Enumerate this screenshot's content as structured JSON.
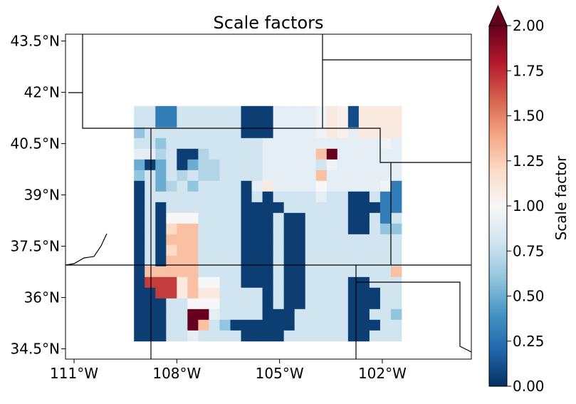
{
  "title": "Scale factors",
  "lat_ticks": [
    {
      "value": 43.5,
      "label": "43.5°N"
    },
    {
      "value": 42.0,
      "label": "42°N"
    },
    {
      "value": 40.5,
      "label": "40.5°N"
    },
    {
      "value": 39.0,
      "label": "39°N"
    },
    {
      "value": 37.5,
      "label": "37.5°N"
    },
    {
      "value": 36.0,
      "label": "36°N"
    },
    {
      "value": 34.5,
      "label": "34.5°N"
    }
  ],
  "lon_ticks": [
    {
      "value": -111,
      "label": "111°W"
    },
    {
      "value": -108,
      "label": "108°W"
    },
    {
      "value": -105,
      "label": "105°W"
    },
    {
      "value": -102,
      "label": "102°W"
    }
  ],
  "extent": {
    "lon_min": -111.25,
    "lon_max": -99.4,
    "lat_min": 34.2,
    "lat_max": 43.7
  },
  "colorbar": {
    "label": "Scale factor",
    "min": 0.0,
    "max": 2.0,
    "extend": "max",
    "colormap": "RdBu_r",
    "ticks": [
      "0.00",
      "0.25",
      "0.50",
      "0.75",
      "1.00",
      "1.25",
      "1.50",
      "1.75",
      "2.00"
    ]
  },
  "chart_data": {
    "type": "heatmap",
    "title": "Scale factors",
    "value_label": "Scale factor",
    "grid": {
      "lon_start": -109.25,
      "lat_top": 41.6,
      "lon_step": 0.3125,
      "lat_step": 0.3125,
      "ncols": 25,
      "nrows": 25
    },
    "rows": [
      [
        0.8,
        0.8,
        0.3,
        0.3,
        0.8,
        0.8,
        0.8,
        0.8,
        0.8,
        0.8,
        0.05,
        0.05,
        0.05,
        0.9,
        0.9,
        0.9,
        0.9,
        0.95,
        1.1,
        1.05,
        0.1,
        1.1,
        1.1,
        1.1,
        1.1
      ],
      [
        0.8,
        0.8,
        0.3,
        0.3,
        0.8,
        0.8,
        0.8,
        0.8,
        0.8,
        0.8,
        0.05,
        0.05,
        0.05,
        0.9,
        0.9,
        0.9,
        0.9,
        0.95,
        1.1,
        1.05,
        0.1,
        1.1,
        1.1,
        1.1,
        1.1
      ],
      [
        0.6,
        0.8,
        0.8,
        0.8,
        0.8,
        0.8,
        0.8,
        0.8,
        0.8,
        0.8,
        0.05,
        0.05,
        0.05,
        0.9,
        0.9,
        0.9,
        0.9,
        0.95,
        1.1,
        1.05,
        0.9,
        1.1,
        1.1,
        1.1,
        1.1
      ],
      [
        0.8,
        0.8,
        0.6,
        0.8,
        0.8,
        0.8,
        0.8,
        0.8,
        0.8,
        0.8,
        0.8,
        0.8,
        0.9,
        0.9,
        0.9,
        0.9,
        0.9,
        0.9,
        0.9,
        0.9,
        0.9,
        0.9,
        0.9,
        0.95,
        0.9
      ],
      [
        0.9,
        0.9,
        0.7,
        0.8,
        0.05,
        0.05,
        0.7,
        0.8,
        0.8,
        0.8,
        0.8,
        0.8,
        0.9,
        0.9,
        0.9,
        0.9,
        0.9,
        1.3,
        2.0,
        0.9,
        0.9,
        0.9,
        0.9,
        0.9,
        0.9
      ],
      [
        0.5,
        0.05,
        0.5,
        0.8,
        0.05,
        0.5,
        0.7,
        0.7,
        0.8,
        0.8,
        0.8,
        0.8,
        0.9,
        0.9,
        0.9,
        0.9,
        0.9,
        0.8,
        0.95,
        0.9,
        0.9,
        0.9,
        0.9,
        0.9,
        0.9
      ],
      [
        0.6,
        0.8,
        0.5,
        0.8,
        0.7,
        0.8,
        0.7,
        0.7,
        0.8,
        0.8,
        0.8,
        0.8,
        0.9,
        0.9,
        0.9,
        0.9,
        0.9,
        1.3,
        0.9,
        0.9,
        0.9,
        0.9,
        0.9,
        0.9,
        0.9
      ],
      [
        0.05,
        0.8,
        0.5,
        0.7,
        0.8,
        0.6,
        0.8,
        0.8,
        0.8,
        0.8,
        0.05,
        0.9,
        1.1,
        0.9,
        0.9,
        0.9,
        0.9,
        1.0,
        0.9,
        0.9,
        0.9,
        0.9,
        0.9,
        0.95,
        0.3
      ],
      [
        0.05,
        0.8,
        0.8,
        0.8,
        0.8,
        0.8,
        0.8,
        0.8,
        0.8,
        0.8,
        0.05,
        0.8,
        0.05,
        0.8,
        0.8,
        0.8,
        0.8,
        0.9,
        0.8,
        0.8,
        0.05,
        0.05,
        0.8,
        0.3,
        0.3
      ],
      [
        0.05,
        0.8,
        0.05,
        0.8,
        0.8,
        0.8,
        0.8,
        0.8,
        0.8,
        0.8,
        0.05,
        0.05,
        0.05,
        0.05,
        0.8,
        0.8,
        0.8,
        0.8,
        0.8,
        0.8,
        0.05,
        0.05,
        0.05,
        0.3,
        0.3
      ],
      [
        0.05,
        0.8,
        0.05,
        1.0,
        1.0,
        1.0,
        0.8,
        0.8,
        0.8,
        0.8,
        0.05,
        0.05,
        0.05,
        0.8,
        0.05,
        0.05,
        0.8,
        0.8,
        0.8,
        0.8,
        0.05,
        0.05,
        0.8,
        0.3,
        0.8
      ],
      [
        0.05,
        0.8,
        0.05,
        1.2,
        1.3,
        1.3,
        0.8,
        0.8,
        0.8,
        0.8,
        0.05,
        0.05,
        0.05,
        0.8,
        0.05,
        0.05,
        0.8,
        0.8,
        0.8,
        0.8,
        0.05,
        0.05,
        0.8,
        0.6,
        0.6
      ],
      [
        0.05,
        0.8,
        0.05,
        1.3,
        1.3,
        1.3,
        0.8,
        0.8,
        0.8,
        0.8,
        0.05,
        0.05,
        0.05,
        0.8,
        0.05,
        0.05,
        0.8,
        0.8,
        0.8,
        0.8,
        0.8,
        0.8,
        0.8,
        0.8,
        0.8
      ],
      [
        0.05,
        0.8,
        0.05,
        1.2,
        1.3,
        1.3,
        0.8,
        0.8,
        0.8,
        0.8,
        0.05,
        0.05,
        0.05,
        0.8,
        0.05,
        0.05,
        0.8,
        0.8,
        0.8,
        0.8,
        0.8,
        0.8,
        0.8,
        0.8,
        0.8
      ],
      [
        0.05,
        0.8,
        0.05,
        1.3,
        1.3,
        1.3,
        0.8,
        0.8,
        0.8,
        0.8,
        0.05,
        0.05,
        0.05,
        0.8,
        0.05,
        0.05,
        0.8,
        0.8,
        0.8,
        0.8,
        0.8,
        0.8,
        0.8,
        0.8,
        0.8
      ],
      [
        0.05,
        1.3,
        1.3,
        1.3,
        1.3,
        1.3,
        0.8,
        0.8,
        0.8,
        0.8,
        0.05,
        0.05,
        0.05,
        0.8,
        0.05,
        0.05,
        0.8,
        0.8,
        0.8,
        0.8,
        0.8,
        0.8,
        0.8,
        0.8,
        1.3
      ],
      [
        0.05,
        1.7,
        1.7,
        1.7,
        1.1,
        1.3,
        1.0,
        1.0,
        0.8,
        0.8,
        0.05,
        0.05,
        0.05,
        0.8,
        0.05,
        0.05,
        0.8,
        0.8,
        0.8,
        0.8,
        0.05,
        0.05,
        0.8,
        0.8,
        0.8
      ],
      [
        0.05,
        0.05,
        1.7,
        1.7,
        1.1,
        1.3,
        1.1,
        1.1,
        0.8,
        0.8,
        0.8,
        0.8,
        0.05,
        0.8,
        0.05,
        0.05,
        0.8,
        0.8,
        0.8,
        0.8,
        0.05,
        0.05,
        0.05,
        0.8,
        0.8
      ],
      [
        0.05,
        0.05,
        0.05,
        0.8,
        0.8,
        1.0,
        1.0,
        1.0,
        0.8,
        0.8,
        0.8,
        0.8,
        0.05,
        0.8,
        0.05,
        0.05,
        0.8,
        0.8,
        0.8,
        0.8,
        0.05,
        0.05,
        0.05,
        0.8,
        0.8
      ],
      [
        0.05,
        0.05,
        0.05,
        0.8,
        0.8,
        2.0,
        2.0,
        0.9,
        0.8,
        0.8,
        0.8,
        0.8,
        0.05,
        0.05,
        0.05,
        0.8,
        0.8,
        0.8,
        0.8,
        0.8,
        0.05,
        0.05,
        0.8,
        0.8,
        0.6
      ],
      [
        0.05,
        0.05,
        0.05,
        0.8,
        0.8,
        2.0,
        1.3,
        0.8,
        0.6,
        0.05,
        0.05,
        0.05,
        0.05,
        0.05,
        0.05,
        0.8,
        0.8,
        0.8,
        0.8,
        0.8,
        0.05,
        0.05,
        0.05,
        0.8,
        0.8
      ],
      [
        0.05,
        0.05,
        0.05,
        0.8,
        0.8,
        0.9,
        0.8,
        0.8,
        0.8,
        0.8,
        0.05,
        0.05,
        0.05,
        0.05,
        0.8,
        0.8,
        0.8,
        0.8,
        0.8,
        0.8,
        0.05,
        0.05,
        0.8,
        0.8,
        0.8
      ],
      [
        null,
        null,
        null,
        null,
        null,
        null,
        null,
        null,
        null,
        null,
        null,
        null,
        null,
        null,
        null,
        null,
        null,
        null,
        null,
        null,
        null,
        null,
        null,
        null,
        null
      ],
      [
        null,
        null,
        null,
        null,
        null,
        null,
        null,
        null,
        null,
        null,
        null,
        null,
        null,
        null,
        null,
        null,
        null,
        null,
        null,
        null,
        null,
        null,
        null,
        null,
        null
      ],
      [
        null,
        null,
        null,
        null,
        null,
        null,
        null,
        null,
        null,
        null,
        null,
        null,
        null,
        null,
        null,
        null,
        null,
        null,
        null,
        null,
        null,
        null,
        null,
        null,
        null
      ]
    ]
  }
}
